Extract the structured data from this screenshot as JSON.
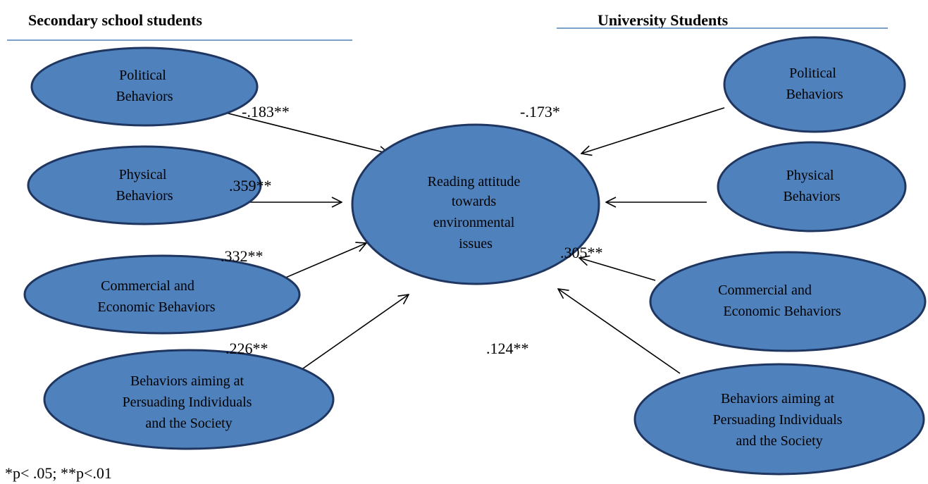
{
  "headings": {
    "secondary": "Secondary school students",
    "university": "University Students"
  },
  "center": {
    "lines": [
      "Reading attitude",
      "towards",
      "environmental",
      "issues"
    ]
  },
  "secondary": {
    "political": {
      "lines": [
        "Political",
        "Behaviors"
      ],
      "coef": "-.183**"
    },
    "physical": {
      "lines": [
        "Physical",
        "Behaviors"
      ],
      "coef": ".359**"
    },
    "commercial": {
      "lines": [
        "Commercial and",
        "Economic Behaviors"
      ],
      "coef": ".332**"
    },
    "persuading": {
      "lines": [
        "Behaviors aiming at",
        "Persuading Individuals",
        "and the Society"
      ],
      "coef": ".226**"
    }
  },
  "university": {
    "political": {
      "lines": [
        "Political",
        "Behaviors"
      ],
      "coef": "-.173*"
    },
    "physical": {
      "lines": [
        "Physical",
        "Behaviors"
      ],
      "coef": ""
    },
    "commercial": {
      "lines": [
        "Commercial and",
        "Economic Behaviors"
      ],
      "coef": ".305**"
    },
    "persuading": {
      "lines": [
        "Behaviors aiming at",
        "Persuading Individuals",
        "and the Society"
      ],
      "coef": ".124**"
    }
  },
  "footnote": "*p< .05; **p<.01",
  "colors": {
    "node_fill": "#4f81bd",
    "node_stroke": "#1f3660",
    "rule": "#4f81bd"
  }
}
